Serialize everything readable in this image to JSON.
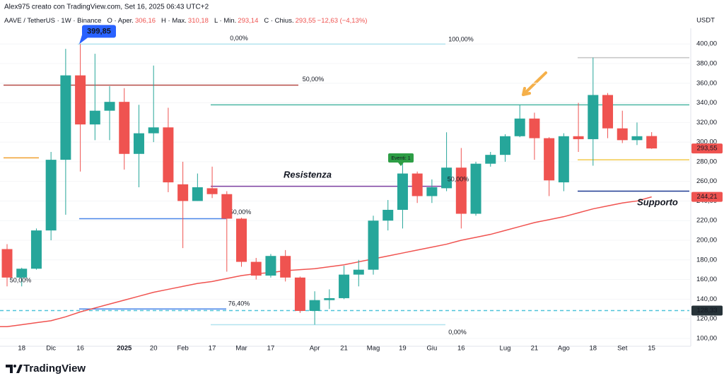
{
  "header": {
    "credit": "Alex975 creato con TradingView.com, Set 16, 2025 06:43 UTC+2",
    "legend": [
      {
        "text": "AAVE / TetherUS · 1W · Binance",
        "color": "#131722"
      },
      {
        "text": "O · Aper.",
        "color": "#131722"
      },
      {
        "text": "306,16",
        "color": "#ef5350"
      },
      {
        "text": "H · Max.",
        "color": "#131722"
      },
      {
        "text": "310,18",
        "color": "#ef5350"
      },
      {
        "text": "L · Min.",
        "color": "#131722"
      },
      {
        "text": "293,14",
        "color": "#ef5350"
      },
      {
        "text": "C · Chius.",
        "color": "#131722"
      },
      {
        "text": "293,55",
        "color": "#ef5350"
      },
      {
        "text": "−12,63 (−4,13%)",
        "color": "#ef5350"
      }
    ]
  },
  "footer": {
    "brand": "TradingView"
  },
  "chart_data": {
    "type": "candlestick",
    "y_axis_title": "USDT",
    "categories": [
      null,
      "18",
      null,
      "Dic",
      null,
      "16",
      null,
      null,
      "2025",
      null,
      "20",
      null,
      "Feb",
      null,
      "17",
      null,
      "Mar",
      null,
      "17",
      null,
      null,
      "Apr",
      null,
      "21",
      null,
      "Mag",
      null,
      "19",
      null,
      "Giu",
      null,
      "16",
      null,
      null,
      "Lug",
      null,
      "21",
      null,
      "Ago",
      null,
      "18",
      null,
      "Set",
      null,
      "15"
    ],
    "open": [
      191,
      162,
      171,
      210,
      282,
      368,
      318,
      332,
      341,
      288,
      309,
      315,
      257,
      240,
      253,
      247,
      222,
      178,
      164,
      184,
      162,
      128,
      139,
      141,
      165,
      170,
      220,
      231,
      268,
      245,
      253,
      274,
      227,
      278,
      287,
      306,
      324,
      304,
      259,
      306,
      303,
      348,
      314,
      302,
      306.16
    ],
    "high": [
      196,
      172,
      212,
      290,
      395,
      399.85,
      390,
      357,
      355,
      338,
      378,
      335,
      280,
      268,
      275,
      250,
      223,
      182,
      186,
      190,
      163,
      148,
      150,
      174,
      180,
      225,
      241,
      278,
      270,
      262,
      310,
      294,
      280,
      290,
      308,
      338,
      330,
      305,
      309,
      340,
      386,
      350,
      332,
      320,
      310.18
    ],
    "low": [
      153,
      153,
      170,
      200,
      226,
      270,
      302,
      302,
      272,
      254,
      300,
      249,
      192,
      240,
      243,
      168,
      173,
      160,
      162,
      158,
      126,
      114,
      130,
      140,
      153,
      165,
      210,
      212,
      238,
      238,
      250,
      212,
      225,
      275,
      280,
      305,
      282,
      245,
      250,
      290,
      276,
      304,
      299,
      297,
      293.14
    ],
    "close": [
      162,
      171,
      210,
      282,
      368,
      318,
      332,
      341,
      288,
      309,
      315,
      259,
      240,
      254,
      247,
      222,
      178,
      164,
      184,
      162,
      128,
      139,
      141,
      165,
      170,
      220,
      231,
      268,
      245,
      254,
      274,
      227,
      278,
      287,
      306,
      324,
      304,
      261,
      306,
      303,
      348,
      314,
      302,
      306,
      293.55
    ],
    "up_color": "#26a69a",
    "down_color": "#ef5350",
    "moving_average": {
      "color": "#f05350",
      "values": [
        112,
        114,
        116,
        118,
        122,
        127,
        131,
        135,
        139,
        143,
        147,
        150,
        153,
        156,
        158,
        161,
        164,
        166,
        167,
        169,
        170,
        171,
        173,
        175,
        178,
        181,
        184,
        187,
        190,
        193,
        196,
        200,
        203,
        206,
        210,
        214,
        218,
        221,
        224,
        228,
        232,
        235,
        238,
        240,
        244.21
      ]
    },
    "ylim": [
      92,
      416
    ],
    "yticks": [
      {
        "value": 100,
        "label": "100,00"
      },
      {
        "value": 120,
        "label": "120,00"
      },
      {
        "value": 140,
        "label": "140,00"
      },
      {
        "value": 160,
        "label": "160,00"
      },
      {
        "value": 180,
        "label": "180,00"
      },
      {
        "value": 200,
        "label": "200,00"
      },
      {
        "value": 220,
        "label": "220,00"
      },
      {
        "value": 240,
        "label": "240,00"
      },
      {
        "value": 260,
        "label": "260,00"
      },
      {
        "value": 280,
        "label": "280,00"
      },
      {
        "value": 300,
        "label": "300,00"
      },
      {
        "value": 320,
        "label": "320,00"
      },
      {
        "value": 340,
        "label": "340,00"
      },
      {
        "value": 360,
        "label": "360,00"
      },
      {
        "value": 380,
        "label": "380,00"
      },
      {
        "value": 400,
        "label": "400,00"
      }
    ],
    "grid": true,
    "levels": [
      {
        "value": 399.85,
        "color": "#b2e3ef",
        "label": "0,00%"
      },
      {
        "value": 386,
        "color": "#c4c4c4"
      },
      {
        "value": 358,
        "color": "#b54a46",
        "label": "50,00%"
      },
      {
        "value": 338,
        "color": "#4db6a4"
      },
      {
        "value": 284,
        "color": "#f0a030"
      },
      {
        "value": 282,
        "color": "#f2c94c"
      },
      {
        "value": 255,
        "color": "#7b3fa0"
      },
      {
        "value": 250,
        "color": "#1f3a93"
      },
      {
        "value": 222,
        "color": "#4a86e8",
        "label": "50,00%"
      },
      {
        "value": 128.33,
        "color": "#4fc3d9",
        "dashed": true
      },
      {
        "value": 130,
        "color": "#4a86e8",
        "label": "76,40%"
      },
      {
        "value": 114,
        "color": "#b2e3ef",
        "label": "0,00%"
      }
    ],
    "price_tags": [
      {
        "value": 293.55,
        "label": "293,55",
        "color": "#ef5350"
      },
      {
        "value": 244.21,
        "label": "244,21",
        "color": "#ef5350"
      },
      {
        "value": 128.33,
        "label": "128,33",
        "color": "#263238"
      }
    ],
    "callout": {
      "value": 399.85,
      "label": "399,85",
      "color": "#2962ff"
    },
    "notes": [
      {
        "text": "100,00%",
        "color": "#9fd8e6"
      },
      {
        "text": "Resistenza",
        "color": "#b046c0"
      },
      {
        "text": "Supporto",
        "color": "#3a7bd5"
      },
      {
        "text": "50,00%",
        "color": "#9575cd"
      },
      {
        "text": "50,00%",
        "color": "#b9a7d8"
      },
      {
        "text": "Eventi: 1",
        "color": "#2e9e46"
      }
    ]
  }
}
